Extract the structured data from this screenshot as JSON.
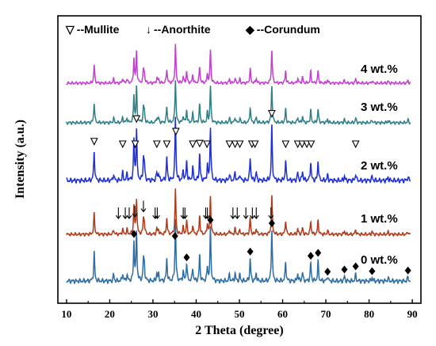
{
  "chart_data": {
    "type": "line",
    "title": "",
    "xlabel": "2 Theta (degree)",
    "ylabel": "Intensity (a.u.)",
    "xlim": [
      8,
      92
    ],
    "xticks": [
      10,
      20,
      30,
      40,
      50,
      60,
      70,
      80,
      90
    ],
    "yticks_shown": false,
    "grid": false,
    "legend": [
      {
        "symbol": "▽",
        "label": "--Mullite",
        "marker": "mullite"
      },
      {
        "symbol": "↓",
        "label": "--Anorthite",
        "marker": "anorthite"
      },
      {
        "symbol": "◆",
        "label": "--Corundum",
        "marker": "corundum"
      }
    ],
    "legend_placement": "top",
    "peaks": {
      "mullite": [
        16.4,
        23.0,
        25.9,
        26.2,
        30.9,
        33.2,
        35.3,
        39.2,
        40.8,
        42.5,
        47.7,
        49.0,
        50.1,
        52.9,
        53.6,
        57.5,
        60.7,
        63.5,
        64.5,
        65.6,
        66.6,
        76.9
      ],
      "anorthite": [
        22.0,
        23.6,
        24.5,
        25.8,
        27.8,
        30.5,
        31.0,
        37.0,
        37.4,
        42.2,
        42.6,
        48.5,
        49.5,
        51.5,
        53.0,
        53.9,
        57.3
      ],
      "corundum": [
        25.6,
        35.1,
        37.8,
        43.3,
        52.5,
        57.5,
        66.5,
        68.2,
        76.9,
        80.7,
        89.0,
        74.3,
        70.4
      ]
    },
    "series": [
      {
        "name": "0 wt.%",
        "label": "0 wt.%",
        "color": "#2e6da4",
        "offset": 0
      },
      {
        "name": "1 wt.%",
        "label": "1 wt.%",
        "color": "#b03a1a",
        "offset": 1
      },
      {
        "name": "2 wt.%",
        "label": "2 wt.%",
        "color": "#1f2fd6",
        "offset": 2
      },
      {
        "name": "3 wt.%",
        "label": "3 wt.%",
        "color": "#2e7f86",
        "offset": 3
      },
      {
        "name": "4 wt.%",
        "label": "4 wt.%",
        "color": "#c23fcf",
        "offset": 4
      }
    ]
  }
}
